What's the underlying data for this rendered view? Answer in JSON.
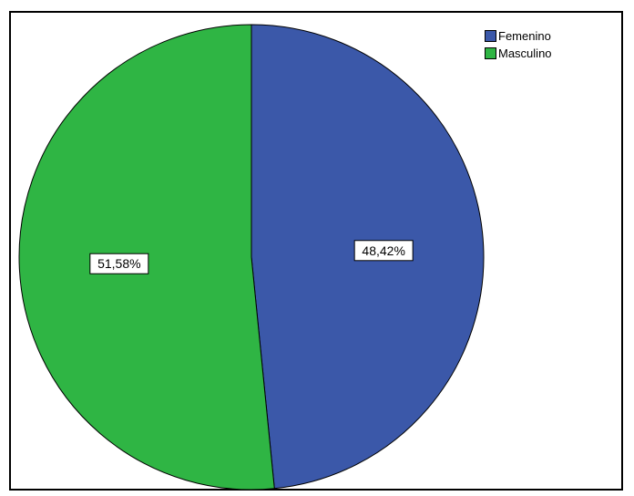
{
  "chart_data": {
    "type": "pie",
    "slices": [
      {
        "label": "Femenino",
        "value": 48.42,
        "display": "48,42%",
        "color": "#3b58a9"
      },
      {
        "label": "Masculino",
        "value": 51.58,
        "display": "51,58%",
        "color": "#2fb544"
      }
    ],
    "legend_placement": "top-right"
  },
  "legend": {
    "items": [
      {
        "label": "Femenino",
        "color": "#3b58a9"
      },
      {
        "label": "Masculino",
        "color": "#2fb544"
      }
    ]
  }
}
